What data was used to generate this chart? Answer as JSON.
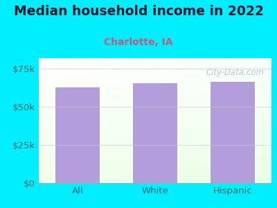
{
  "title": "Median household income in 2022",
  "subtitle": "Charlotte, IA",
  "categories": [
    "All",
    "White",
    "Hispanic"
  ],
  "values": [
    63000,
    65500,
    66500
  ],
  "bar_color": "#b39ddb",
  "background_outer": "#00eeff",
  "title_color": "#1a1a2e",
  "subtitle_color": "#cc5577",
  "tick_color": "#336666",
  "yticks": [
    0,
    25000,
    50000,
    75000
  ],
  "ytick_labels": [
    "$0",
    "$25k",
    "$50k",
    "$75k"
  ],
  "ylim": [
    0,
    82000
  ],
  "watermark": "City-Data.com",
  "title_fontsize": 13.5,
  "subtitle_fontsize": 10
}
